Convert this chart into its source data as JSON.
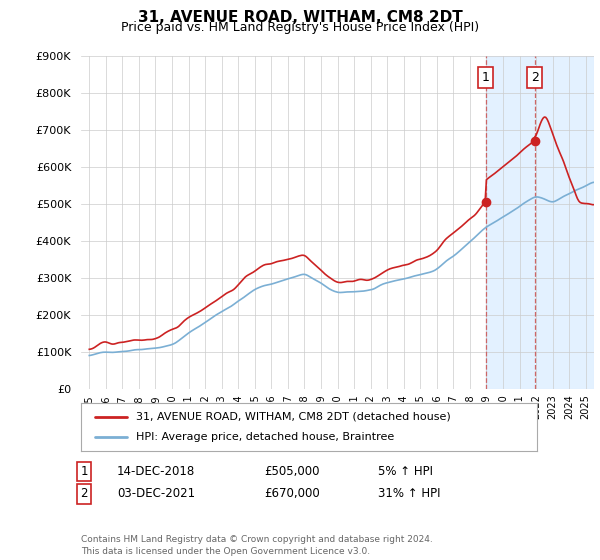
{
  "title": "31, AVENUE ROAD, WITHAM, CM8 2DT",
  "subtitle": "Price paid vs. HM Land Registry's House Price Index (HPI)",
  "ylim": [
    0,
    900000
  ],
  "yticks": [
    0,
    100000,
    200000,
    300000,
    400000,
    500000,
    600000,
    700000,
    800000,
    900000
  ],
  "sale1_year": 2018.958,
  "sale1_price": 505000,
  "sale1_label": "1",
  "sale2_year": 2021.917,
  "sale2_price": 670000,
  "sale2_label": "2",
  "hpi_line_color": "#7bafd4",
  "price_line_color": "#cc2222",
  "sale_marker_color": "#cc2222",
  "highlight_color": "#ddeeff",
  "grid_color": "#cccccc",
  "background_color": "#ffffff",
  "legend_label_price": "31, AVENUE ROAD, WITHAM, CM8 2DT (detached house)",
  "legend_label_hpi": "HPI: Average price, detached house, Braintree",
  "table_row1": [
    "1",
    "14-DEC-2018",
    "£505,000",
    "5% ↑ HPI"
  ],
  "table_row2": [
    "2",
    "03-DEC-2021",
    "£670,000",
    "31% ↑ HPI"
  ],
  "footnote": "Contains HM Land Registry data © Crown copyright and database right 2024.\nThis data is licensed under the Open Government Licence v3.0.",
  "xmin": 1994.5,
  "xmax": 2025.5
}
